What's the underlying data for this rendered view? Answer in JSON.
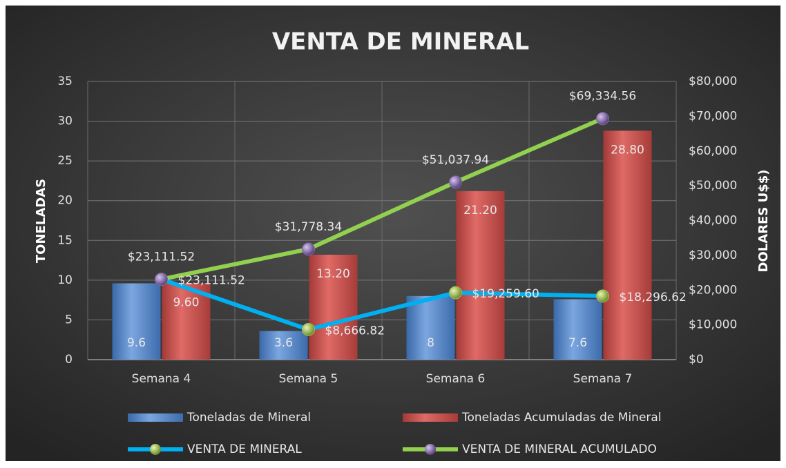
{
  "chart_data": {
    "type": "bar-line",
    "title": "VENTA DE MINERAL",
    "y_label": "TONELADAS",
    "y2_label": "DOLARES U$$)",
    "categories": [
      "Semana 4",
      "Semana 5",
      "Semana 6",
      "Semana 7"
    ],
    "ylim": [
      0,
      35
    ],
    "yticks": [
      0,
      5,
      10,
      15,
      20,
      25,
      30,
      35
    ],
    "y2lim": [
      0,
      80000
    ],
    "y2ticks": [
      {
        "value": 0,
        "label": "$0"
      },
      {
        "value": 10000,
        "label": "$10,000"
      },
      {
        "value": 20000,
        "label": "$20,000"
      },
      {
        "value": 30000,
        "label": "$30,000"
      },
      {
        "value": 40000,
        "label": "$40,000"
      },
      {
        "value": 50000,
        "label": "$50,000"
      },
      {
        "value": 60000,
        "label": "$60,000"
      },
      {
        "value": 70000,
        "label": "$70,000"
      },
      {
        "value": 80000,
        "label": "$80,000"
      }
    ],
    "grid": true,
    "series": [
      {
        "name": "Toneladas de Mineral",
        "kind": "bar",
        "color": "#4f81bd",
        "values": [
          9.6,
          3.6,
          8,
          7.6
        ]
      },
      {
        "name": "Toneladas Acumuladas de Mineral",
        "kind": "bar",
        "color": "#c0504d",
        "values": [
          9.6,
          13.2,
          21.2,
          28.8
        ],
        "value_labels": [
          "9.60",
          "13.20",
          "21.20",
          "28.80"
        ]
      },
      {
        "name": "VENTA DE MINERAL",
        "kind": "line",
        "axis": "y2",
        "color": "#00b0f0",
        "marker_color": "#9bbb59",
        "values": [
          23111.52,
          8666.82,
          19259.6,
          18296.62
        ],
        "value_labels": [
          "$23,111.52",
          "$8,666.82",
          "$19,259.60",
          "$18,296.62"
        ]
      },
      {
        "name": "VENTA DE MINERAL ACUMULADO",
        "kind": "line",
        "axis": "y2",
        "color": "#92d050",
        "marker_color": "#8064a2",
        "values": [
          23111.52,
          31778.34,
          51037.94,
          69334.56
        ],
        "value_labels": [
          "$23,111.52",
          "$31,778.34",
          "$51,037.94",
          "$69,334.56"
        ]
      }
    ]
  }
}
